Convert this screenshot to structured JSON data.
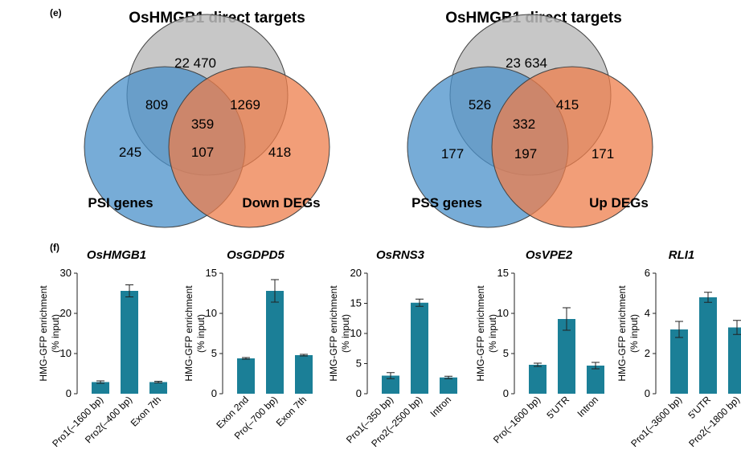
{
  "panel_e_label": "(e)",
  "panel_f_label": "(f)",
  "colors": {
    "gray": "#bdbdbd",
    "blue": "#4a90c9",
    "orange": "#ee7d4b",
    "bar": "#1b7f97"
  },
  "chart_data": [
    {
      "type": "venn",
      "title": "OsHMGB1 direct targets",
      "sets": [
        "OsHMGB1 direct targets",
        "PSI genes",
        "Down DEGs"
      ],
      "labels": {
        "left": "PSI genes",
        "right": "Down DEGs"
      },
      "regions": {
        "top_only": "22 470",
        "top_left": "809",
        "top_right": "1269",
        "center": "359",
        "left_only": "245",
        "left_right": "107",
        "right_only": "418"
      }
    },
    {
      "type": "venn",
      "title": "OsHMGB1 direct targets",
      "sets": [
        "OsHMGB1 direct targets",
        "PSS genes",
        "Up DEGs"
      ],
      "labels": {
        "left": "PSS genes",
        "right": "Up DEGs"
      },
      "regions": {
        "top_only": "23 634",
        "top_left": "526",
        "top_right": "415",
        "center": "332",
        "left_only": "177",
        "left_right": "197",
        "right_only": "171"
      }
    },
    {
      "type": "bar",
      "title": "OsHMGB1",
      "ylabel": "HMG-GFP enrichment (% input)",
      "ylabel_lines": [
        "HMG-GFP enrichment",
        "(% input)"
      ],
      "ylim": [
        0,
        30
      ],
      "yticks": [
        "0",
        "10",
        "20",
        "30"
      ],
      "categories": [
        "Pro1(–1600 bp)",
        "Pro2(–400 bp)",
        "Exon 7th"
      ],
      "values": [
        2.9,
        25.6,
        2.9
      ],
      "errors": [
        0.3,
        1.5,
        0.2
      ]
    },
    {
      "type": "bar",
      "title": "OsGDPD5",
      "ylabel": "HMG-GFP enrichment (% input)",
      "ylabel_lines": [
        "HMG-GFP enrichment",
        "(% input)"
      ],
      "ylim": [
        0,
        15
      ],
      "yticks": [
        "0",
        "5",
        "10",
        "15"
      ],
      "categories": [
        "Exon 2nd",
        "Pro(–700 bp)",
        "Exon 7th"
      ],
      "values": [
        4.4,
        12.8,
        4.8
      ],
      "errors": [
        0.1,
        1.4,
        0.1
      ]
    },
    {
      "type": "bar",
      "title": "OsRNS3",
      "ylabel": "HMG-GFP enrichment (% input)",
      "ylabel_lines": [
        "HMG-GFP enrichment",
        "(% input)"
      ],
      "ylim": [
        0,
        20
      ],
      "yticks": [
        "0",
        "5",
        "10",
        "15",
        "20"
      ],
      "categories": [
        "Pro1(–350 bp)",
        "Pro2(–2500 bp)",
        "Intron"
      ],
      "values": [
        3.0,
        15.1,
        2.7
      ],
      "errors": [
        0.5,
        0.6,
        0.2
      ]
    },
    {
      "type": "bar",
      "title": "OsVPE2",
      "ylabel": "HMG-GFP enrichment (% input)",
      "ylabel_lines": [
        "HMG-GFP enrichment",
        "(% input)"
      ],
      "ylim": [
        0,
        15
      ],
      "yticks": [
        "0",
        "5",
        "10",
        "15"
      ],
      "categories": [
        "Pro(–1600 bp)",
        "5'UTR",
        "Intron"
      ],
      "values": [
        3.6,
        9.3,
        3.5
      ],
      "errors": [
        0.2,
        1.4,
        0.4
      ]
    },
    {
      "type": "bar",
      "title": "RLI1",
      "ylabel": "HMG-GFP enrichment (% input)",
      "ylabel_lines": [
        "HMG-GFP enrichment",
        "(% input)"
      ],
      "ylim": [
        0,
        6
      ],
      "yticks": [
        "0",
        "2",
        "4",
        "6"
      ],
      "categories": [
        "Pro1(–3600 bp)",
        "5'UTR",
        "Pro2(–1800 bp)"
      ],
      "values": [
        3.2,
        4.8,
        3.3
      ],
      "errors": [
        0.4,
        0.25,
        0.35
      ]
    }
  ]
}
